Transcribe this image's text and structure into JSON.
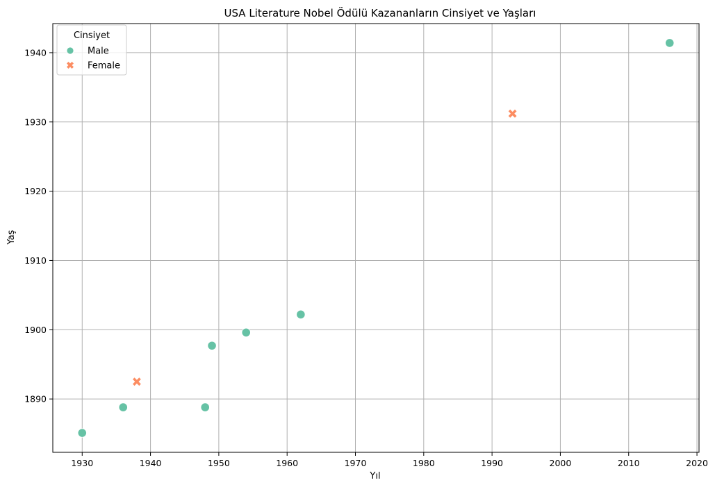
{
  "chart_data": {
    "type": "scatter",
    "title": "USA Literature Nobel Ödülü Kazananların Cinsiyet ve Yaşları",
    "xlabel": "Yıl",
    "ylabel": "Yaş",
    "xlim": [
      1925.7,
      2020.3
    ],
    "ylim": [
      1882.3,
      1944.2
    ],
    "xticks": [
      1930,
      1940,
      1950,
      1960,
      1970,
      1980,
      1990,
      2000,
      2010,
      2020
    ],
    "yticks": [
      1890,
      1900,
      1910,
      1920,
      1930,
      1940
    ],
    "grid": true,
    "legend": {
      "title": "Cinsiyet",
      "placement": "top-left"
    },
    "series": [
      {
        "name": "Male",
        "marker": "circle",
        "color": "#66c2a5",
        "points": [
          {
            "x": 1930,
            "y": 1885.1
          },
          {
            "x": 1936,
            "y": 1888.8
          },
          {
            "x": 1948,
            "y": 1888.8
          },
          {
            "x": 1949,
            "y": 1897.7
          },
          {
            "x": 1954,
            "y": 1899.6
          },
          {
            "x": 1962,
            "y": 1902.2
          },
          {
            "x": 2016,
            "y": 1941.4
          }
        ]
      },
      {
        "name": "Female",
        "marker": "x",
        "color": "#fc8d62",
        "points": [
          {
            "x": 1938,
            "y": 1892.5
          },
          {
            "x": 1993,
            "y": 1931.2
          }
        ]
      }
    ]
  }
}
